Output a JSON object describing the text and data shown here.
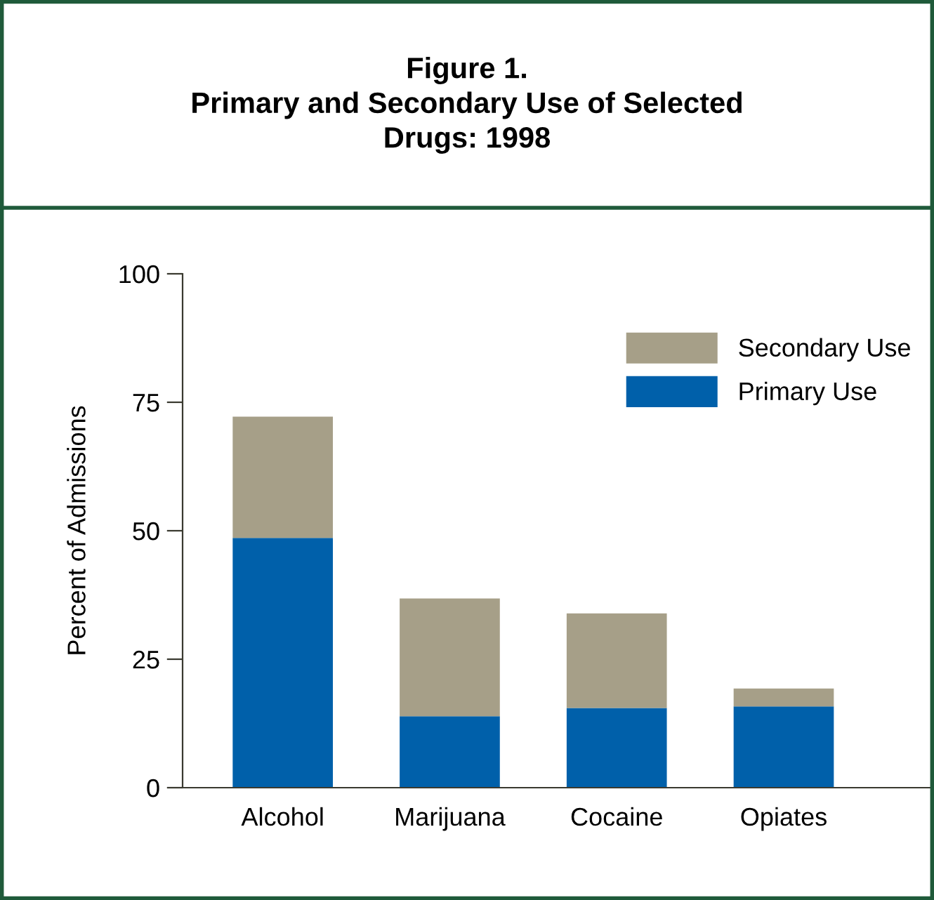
{
  "chart_data": {
    "type": "bar",
    "title": "Figure 1.\nPrimary and Secondary Use of Selected\nDrugs: 1998",
    "ylabel": "Percent of Admissions",
    "categories": [
      "Alcohol",
      "Marijuana",
      "Cocaine",
      "Opiates"
    ],
    "series": [
      {
        "name": "Primary Use",
        "color": "#0060aa",
        "values": [
          48.6,
          13.9,
          15.5,
          15.8
        ]
      },
      {
        "name": "Secondary Use",
        "color": "#a69f88",
        "values": [
          23.6,
          22.9,
          18.4,
          3.5
        ]
      }
    ],
    "stacked": true,
    "ylim": [
      0,
      100
    ],
    "yticks": [
      0,
      25,
      50,
      75,
      100
    ],
    "grid": false,
    "legend": "top right"
  }
}
